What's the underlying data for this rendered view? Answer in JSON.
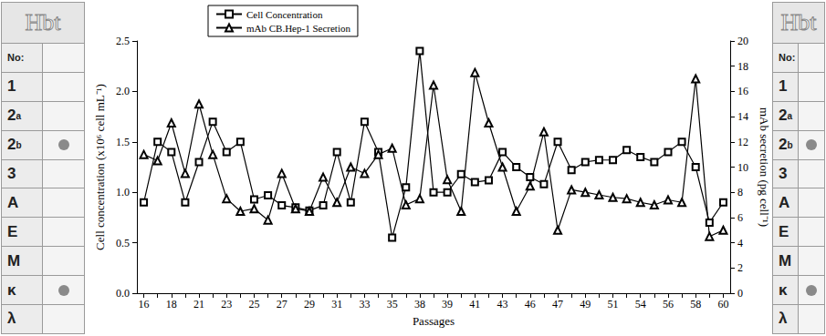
{
  "chart_data": {
    "type": "line",
    "x_label": "Passages",
    "y_label": "Cell concentration (x10⁶ cell mL⁻¹)",
    "y2_label": "mAb secretion (pg cell⁻¹)",
    "categories": [
      "16",
      null,
      "18",
      null,
      "21",
      null,
      "23",
      null,
      "25",
      null,
      "27",
      null,
      "29",
      null,
      "31",
      null,
      "33",
      null,
      "35",
      null,
      "38",
      null,
      "39",
      null,
      "41",
      null,
      "43",
      null,
      "46",
      null,
      "47",
      null,
      "49",
      null,
      "51",
      null,
      "54",
      null,
      "56",
      null,
      "58",
      null,
      "60"
    ],
    "series": [
      {
        "name": "Cell Concentration",
        "color": "#000000",
        "marker": "square",
        "axis": "y",
        "values": [
          0.9,
          1.5,
          1.4,
          0.9,
          1.3,
          1.7,
          1.4,
          1.5,
          0.93,
          0.97,
          0.87,
          0.85,
          0.82,
          0.87,
          1.4,
          0.9,
          1.7,
          1.4,
          0.55,
          1.05,
          2.4,
          1.0,
          1.0,
          1.18,
          1.1,
          1.12,
          1.4,
          1.25,
          1.15,
          1.08,
          1.5,
          1.22,
          1.3,
          1.32,
          1.32,
          1.42,
          1.35,
          1.3,
          1.4,
          1.5,
          1.25,
          0.7,
          0.9
        ]
      },
      {
        "name": "mAb CB.Hep-1 Secretion",
        "color": "#000000",
        "marker": "triangle",
        "axis": "y2",
        "values": [
          11,
          10.5,
          13.5,
          9.5,
          15,
          11,
          7.5,
          6.5,
          6.7,
          5.8,
          9.5,
          6.7,
          6.5,
          9.2,
          7.2,
          10,
          9.5,
          11,
          11.5,
          7,
          7.5,
          16.5,
          9,
          6.5,
          17.5,
          13.5,
          10,
          6.5,
          8.5,
          12.8,
          5,
          8.2,
          8,
          7.8,
          7.6,
          7.5,
          7.2,
          7,
          7.4,
          7.2,
          17,
          4.5,
          5
        ]
      }
    ],
    "ylim": [
      0,
      2.5
    ],
    "yticks": [
      {
        "value": 0,
        "label": "0.0"
      },
      {
        "value": 0.5,
        "label": "0.5"
      },
      {
        "value": 1,
        "label": "1.0"
      },
      {
        "value": 1.5,
        "label": "1.5"
      },
      {
        "value": 2,
        "label": "2.0"
      },
      {
        "value": 2.5,
        "label": "2.5"
      }
    ],
    "y2lim": [
      0,
      20
    ],
    "y2ticks": [
      0,
      2,
      4,
      6,
      8,
      10,
      12,
      14,
      16,
      18,
      20
    ],
    "grid": false,
    "legend": "upper left",
    "annotations": [
      "Hbt",
      "No:",
      "1",
      "2a",
      "2b",
      "3",
      "A",
      "E",
      "M",
      "κ",
      "λ"
    ]
  }
}
